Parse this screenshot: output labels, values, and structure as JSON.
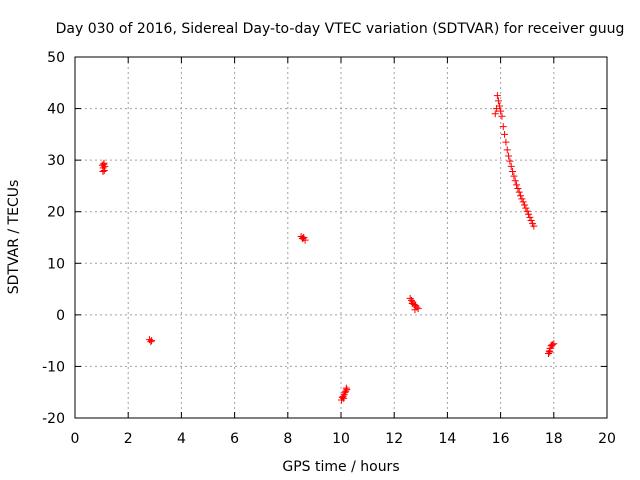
{
  "chart_data": {
    "type": "scatter",
    "title": "Day 030 of 2016, Sidereal Day-to-day VTEC variation (SDTVAR) for receiver guug",
    "xlabel": "GPS time / hours",
    "ylabel": "SDTVAR / TECUs",
    "xlim": [
      0,
      20
    ],
    "ylim": [
      -20,
      50
    ],
    "xticks": [
      "0",
      "2",
      "4",
      "6",
      "8",
      "10",
      "12",
      "14",
      "16",
      "18",
      "20"
    ],
    "yticks": [
      "-20",
      "-10",
      "0",
      "10",
      "20",
      "30",
      "40",
      "50"
    ],
    "grid": true,
    "marker": "plus",
    "color": "#ff0000",
    "series": [
      {
        "x": [
          1.03,
          1.06,
          1.08,
          1.1,
          1.12,
          1.05,
          1.09,
          2.8,
          2.85,
          2.88,
          8.5,
          8.55,
          8.6,
          8.65,
          8.58,
          10.02,
          10.05,
          10.08,
          10.12,
          10.15,
          10.18,
          10.22,
          10.1,
          10.2,
          12.6,
          12.65,
          12.7,
          12.75,
          12.8,
          12.85,
          12.9,
          12.68,
          12.78,
          15.8,
          15.85,
          15.88,
          15.92,
          15.96,
          16.0,
          16.05,
          16.1,
          16.15,
          16.2,
          16.25,
          16.3,
          16.35,
          16.4,
          16.45,
          16.5,
          16.55,
          16.6,
          16.65,
          16.7,
          16.75,
          16.8,
          16.85,
          16.9,
          16.95,
          17.0,
          17.05,
          17.1,
          17.15,
          17.2,
          17.25,
          17.8,
          17.83,
          17.86,
          17.9,
          17.95,
          18.0,
          17.85,
          17.92
        ],
        "y": [
          29.0,
          28.5,
          29.2,
          28.0,
          28.8,
          27.8,
          29.4,
          -4.8,
          -5.2,
          -5.0,
          15.2,
          14.8,
          15.0,
          14.5,
          14.9,
          -16.5,
          -16.0,
          -15.8,
          -15.5,
          -15.0,
          -14.8,
          -14.5,
          -16.2,
          -14.2,
          3.2,
          2.8,
          2.5,
          2.0,
          1.8,
          1.5,
          1.2,
          2.2,
          1.0,
          39.0,
          40.0,
          42.5,
          41.5,
          40.5,
          39.5,
          38.5,
          36.5,
          35.0,
          33.5,
          32.0,
          30.8,
          29.8,
          28.8,
          27.8,
          26.9,
          26.0,
          25.2,
          24.5,
          23.8,
          23.1,
          22.5,
          21.9,
          21.3,
          20.7,
          20.1,
          19.5,
          18.9,
          18.3,
          17.7,
          17.2,
          -7.5,
          -7.0,
          -6.5,
          -6.0,
          -5.8,
          -5.6,
          -7.2,
          -5.9
        ]
      }
    ]
  }
}
